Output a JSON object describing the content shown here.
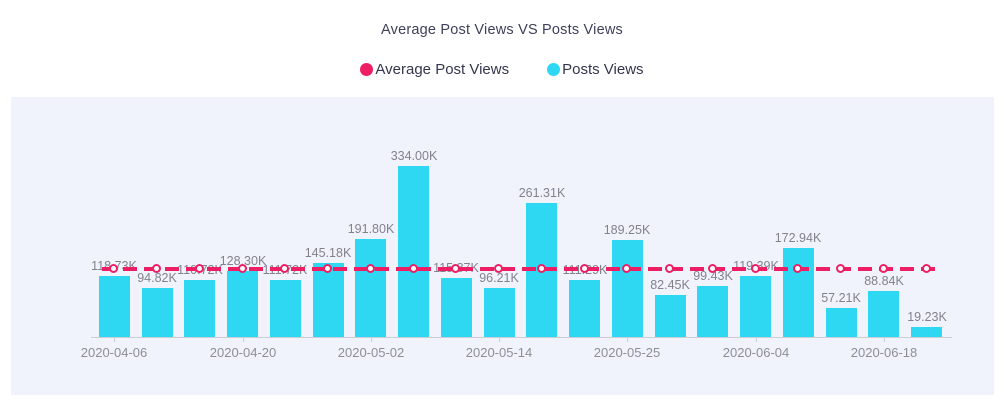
{
  "page": {
    "background": "#ffffff",
    "panel_background": "#f0f3fb"
  },
  "chart": {
    "title": "Average Post Views VS Posts Views",
    "legend": [
      {
        "label": "Average Post Views",
        "color": "#ed1e64",
        "marker": "circle"
      },
      {
        "label": "Posts Views",
        "color": "#2ed8f2",
        "marker": "circle"
      }
    ]
  },
  "chart_data": {
    "type": "bar",
    "title": "Average Post Views VS Posts Views",
    "bar_count": 20,
    "x_tick_labels": [
      "2020-04-06",
      "2020-04-20",
      "2020-05-02",
      "2020-05-14",
      "2020-05-25",
      "2020-06-04",
      "2020-06-18"
    ],
    "x_tick_bar_indices": [
      0,
      3,
      6,
      9,
      12,
      15,
      18
    ],
    "series": [
      {
        "name": "Posts Views",
        "type": "bar",
        "color": "#2ed8f2",
        "values_k": [
          118.73,
          94.82,
          110.72,
          128.3,
          111.72,
          145.18,
          191.8,
          334.0,
          115.87,
          96.21,
          261.31,
          111.29,
          189.25,
          82.45,
          99.43,
          119.39,
          172.94,
          57.21,
          88.84,
          19.23
        ],
        "value_labels": [
          "118.73K",
          "94.82K",
          "110.72K",
          "128.30K",
          "111.72K",
          "145.18K",
          "191.80K",
          "334.00K",
          "115.87K",
          "96.21K",
          "261.31K",
          "111.29K",
          "189.25K",
          "82.45K",
          "99.43K",
          "119.39K",
          "172.94K",
          "57.21K",
          "88.84K",
          "19.23K"
        ],
        "value_label_color": "#82828e"
      },
      {
        "name": "Average Post Views",
        "type": "line",
        "line_style": "dashed",
        "color": "#ed1e64",
        "value_k": 132.43,
        "marker": {
          "shape": "circle",
          "fill": "#ffffff",
          "ring_color": "#ed1e64"
        }
      }
    ],
    "ylim_k": [
      0,
      468
    ],
    "grid": false,
    "legend_position": "top",
    "axis": {
      "baseline_color": "#cbced6",
      "tick_color": "#cbced6",
      "label_color": "#8e8e9a"
    }
  }
}
